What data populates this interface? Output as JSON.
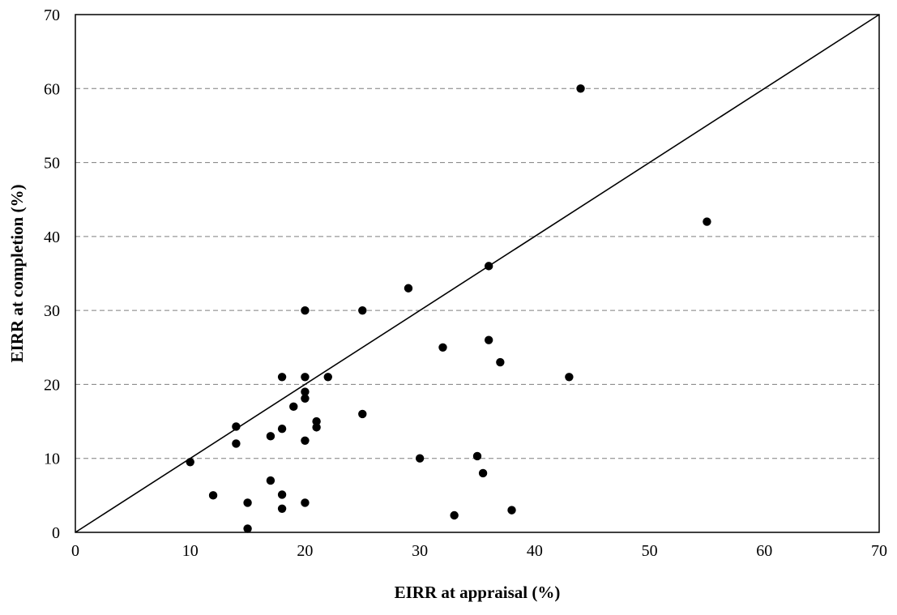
{
  "chart_data": {
    "type": "scatter",
    "xlabel": "EIRR at appraisal (%)",
    "ylabel": "EIRR at completion (%)",
    "xlim": [
      0,
      70
    ],
    "ylim": [
      0,
      70
    ],
    "x_ticks": [
      0,
      10,
      20,
      30,
      40,
      50,
      60,
      70
    ],
    "y_ticks": [
      0,
      10,
      20,
      30,
      40,
      50,
      60,
      70
    ],
    "grid": "horizontal dashed",
    "reference_line": {
      "from": [
        0,
        0
      ],
      "to": [
        70,
        70
      ]
    },
    "colors": {
      "points": "#000000",
      "grid": "#7f7f7f",
      "axes": "#000000"
    },
    "series": [
      {
        "points": [
          [
            10,
            9.5
          ],
          [
            12,
            5
          ],
          [
            14,
            14.3
          ],
          [
            14,
            12
          ],
          [
            15,
            4
          ],
          [
            15,
            0.5
          ],
          [
            17,
            13
          ],
          [
            17,
            7
          ],
          [
            18,
            21
          ],
          [
            18,
            14
          ],
          [
            18,
            5.1
          ],
          [
            18,
            3.2
          ],
          [
            19,
            17
          ],
          [
            20,
            30
          ],
          [
            20,
            21
          ],
          [
            20,
            19
          ],
          [
            20,
            18.1
          ],
          [
            20,
            12.4
          ],
          [
            20,
            4
          ],
          [
            21,
            15
          ],
          [
            21,
            14.2
          ],
          [
            22,
            21
          ],
          [
            25,
            30
          ],
          [
            25,
            16
          ],
          [
            29,
            33
          ],
          [
            30,
            10
          ],
          [
            32,
            25
          ],
          [
            33,
            2.3
          ],
          [
            35,
            10.3
          ],
          [
            35.5,
            8
          ],
          [
            36,
            36
          ],
          [
            36,
            26
          ],
          [
            37,
            23
          ],
          [
            38,
            3
          ],
          [
            43,
            21
          ],
          [
            44,
            60
          ],
          [
            55,
            42
          ]
        ]
      }
    ]
  }
}
